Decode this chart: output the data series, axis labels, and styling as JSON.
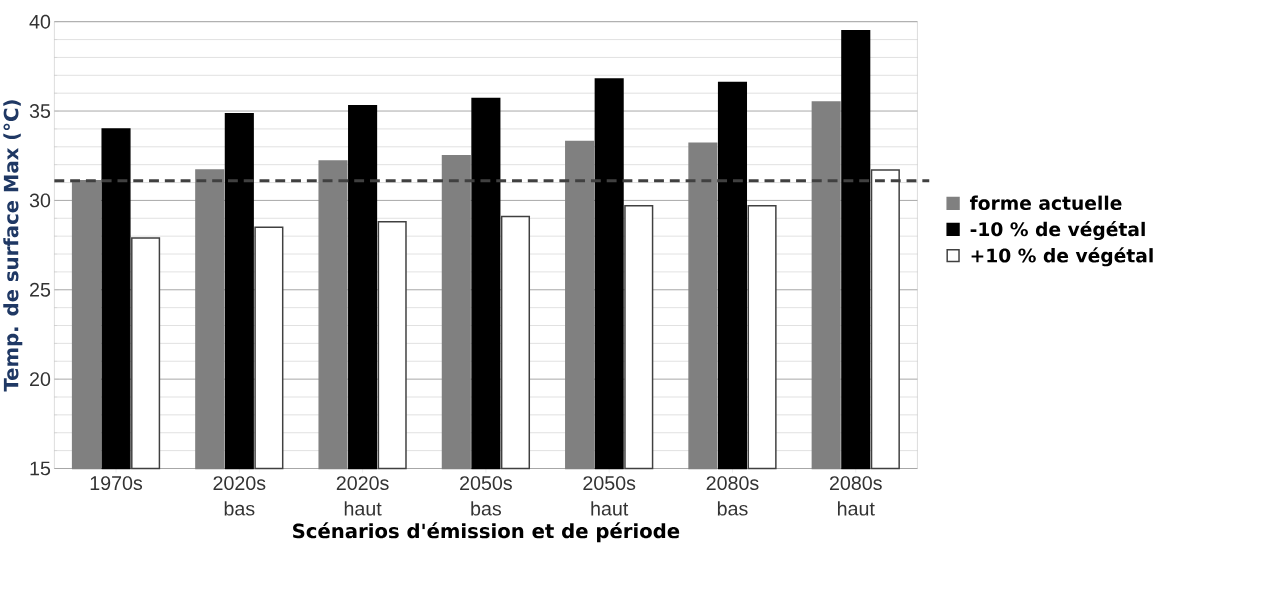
{
  "chart_data": {
    "type": "bar",
    "xlabel": "Scénarios d'émission et de période",
    "ylabel": "Temp. de surface Max (°C)",
    "categories": [
      "1970s",
      "2020s bas",
      "2020s haut",
      "2050s bas",
      "2050s haut",
      "2080s bas",
      "2080s haut"
    ],
    "series": [
      {
        "name": "forme actuelle",
        "color": "#808080",
        "values": [
          31.1,
          31.7,
          32.2,
          32.5,
          33.3,
          33.2,
          35.5
        ]
      },
      {
        "name": "-10 % de végétal",
        "color": "#000000",
        "values": [
          34.0,
          34.85,
          35.3,
          35.7,
          36.8,
          36.6,
          39.5
        ]
      },
      {
        "name": "+10 % de végétal",
        "color": "#ffffff",
        "values": [
          27.9,
          28.5,
          28.8,
          29.1,
          29.7,
          29.7,
          31.7
        ]
      }
    ],
    "ylim": [
      15,
      40
    ],
    "yticks": [
      15,
      20,
      25,
      30,
      35,
      40
    ],
    "grid": "y",
    "legend": "right",
    "ref_lines": [
      {
        "axis": "y",
        "value": 31.1,
        "color": "#404040",
        "line_style": "dashed"
      }
    ]
  }
}
